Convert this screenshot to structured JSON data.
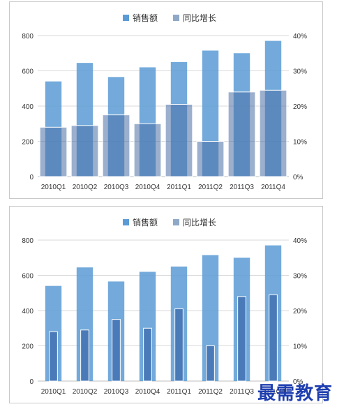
{
  "chart_data": [
    {
      "type": "bar",
      "categories": [
        "2010Q1",
        "2010Q2",
        "2010Q3",
        "2010Q4",
        "2011Q1",
        "2011Q2",
        "2011Q3",
        "2011Q4"
      ],
      "series": [
        {
          "name": "销售额",
          "axis": "left",
          "values": [
            540,
            645,
            565,
            620,
            650,
            715,
            700,
            770
          ],
          "color": "#5b9bd5"
        },
        {
          "name": "同比增长",
          "axis": "right",
          "values": [
            0.14,
            0.145,
            0.175,
            0.15,
            0.205,
            0.1,
            0.24,
            0.245
          ],
          "color": "#8fa8c8"
        }
      ],
      "ylim": [
        0,
        800
      ],
      "y2lim": [
        0,
        0.4
      ],
      "yticks": [
        "0",
        "200",
        "400",
        "600",
        "800"
      ],
      "y2ticks": [
        "0%",
        "10%",
        "20%",
        "30%",
        "40%"
      ],
      "legend": "top",
      "grid": true,
      "style": "overlap-wide"
    },
    {
      "type": "bar",
      "categories": [
        "2010Q1",
        "2010Q2",
        "2010Q3",
        "2010Q4",
        "2011Q1",
        "2011Q2",
        "2011Q3",
        "2011Q4"
      ],
      "series": [
        {
          "name": "销售额",
          "axis": "left",
          "values": [
            540,
            645,
            565,
            620,
            650,
            715,
            700,
            770
          ],
          "color": "#5b9bd5"
        },
        {
          "name": "同比增长",
          "axis": "right",
          "values": [
            0.14,
            0.145,
            0.175,
            0.15,
            0.205,
            0.1,
            0.24,
            0.245
          ],
          "color": "#8fa8c8"
        }
      ],
      "ylim": [
        0,
        800
      ],
      "y2lim": [
        0,
        0.4
      ],
      "yticks": [
        "0",
        "200",
        "400",
        "600",
        "800"
      ],
      "y2ticks": [
        "0%",
        "10%",
        "20%",
        "30%",
        "40%"
      ],
      "legend": "top",
      "grid": true,
      "style": "overlap-narrow"
    }
  ],
  "watermark": "最需教育"
}
